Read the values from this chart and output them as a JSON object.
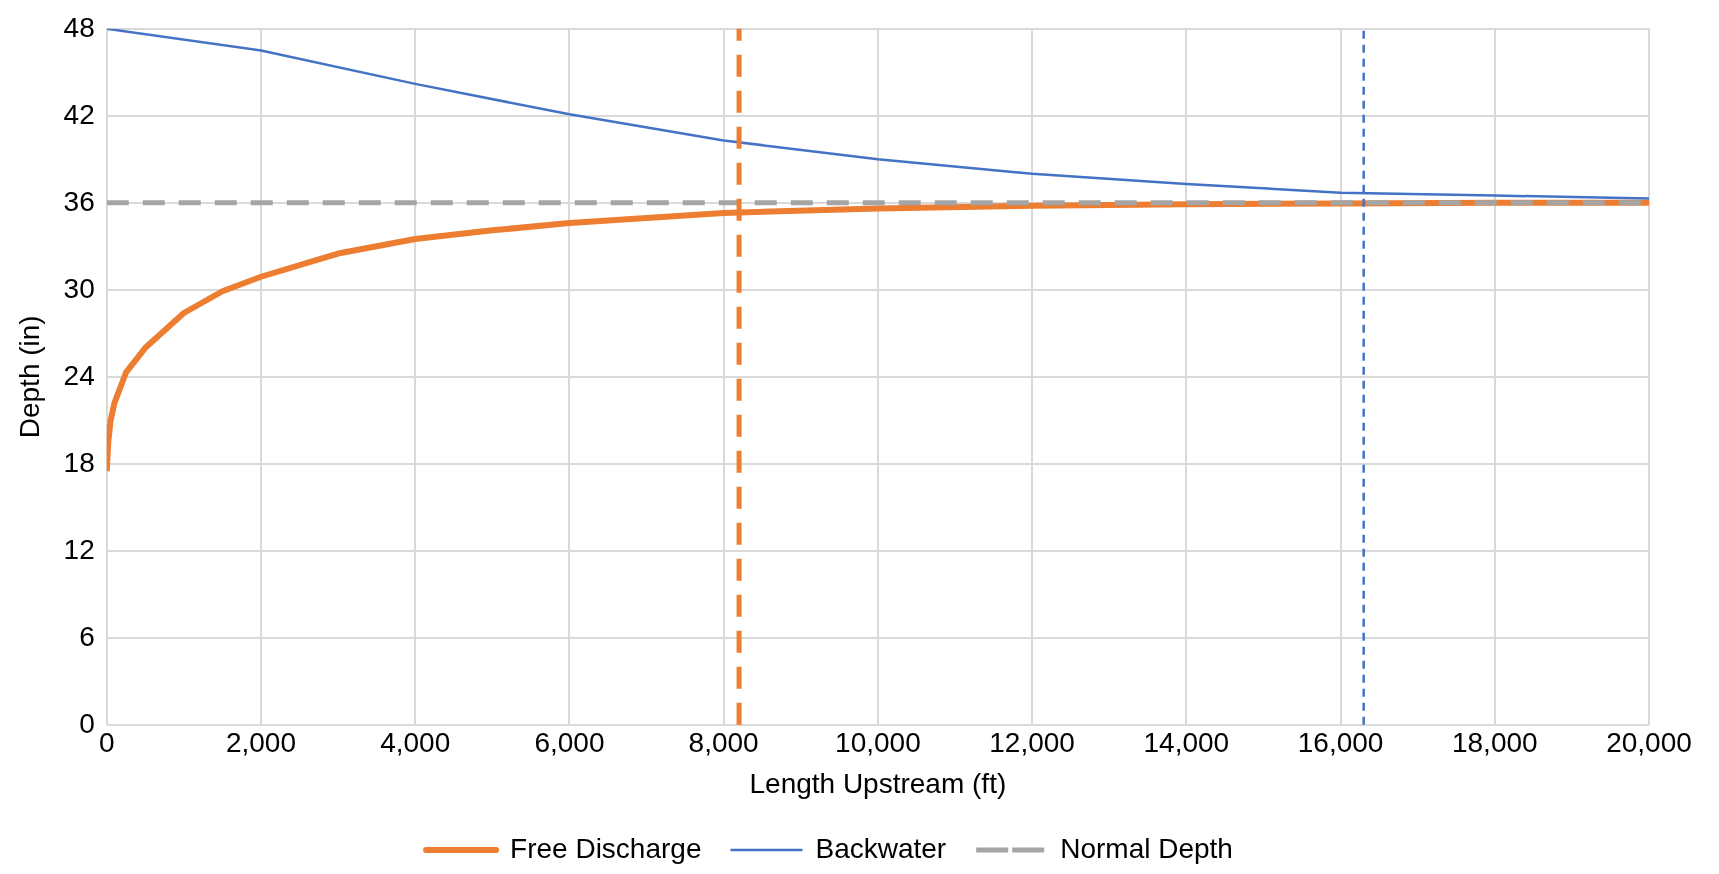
{
  "chart_data": {
    "type": "line",
    "xlabel": "Length Upstream (ft)",
    "ylabel": "Depth (in)",
    "xlim": [
      0,
      20000
    ],
    "xticks": [
      0,
      {
        "value": 2000,
        "label": "2,000"
      },
      {
        "value": 4000,
        "label": "4,000"
      },
      {
        "value": 6000,
        "label": "6,000"
      },
      {
        "value": 8000,
        "label": "8,000"
      },
      {
        "value": 10000,
        "label": "10,000"
      },
      {
        "value": 12000,
        "label": "12,000"
      },
      {
        "value": 14000,
        "label": "14,000"
      },
      {
        "value": 16000,
        "label": "16,000"
      },
      {
        "value": 18000,
        "label": "18,000"
      },
      {
        "value": 20000,
        "label": "20,000"
      }
    ],
    "ylim": [
      0,
      48
    ],
    "yticks": [
      0,
      6,
      12,
      18,
      24,
      30,
      36,
      42,
      48
    ],
    "grid": true,
    "legend": "bottom",
    "marker": "none",
    "series": [
      {
        "name": "Free Discharge",
        "color": "#ed7d31",
        "line_style": "solid",
        "x": [
          0,
          20,
          50,
          100,
          250,
          500,
          1000,
          1500,
          2000,
          3000,
          4000,
          5000,
          6000,
          8000,
          10000,
          12000,
          14000,
          16000,
          18000,
          20000
        ],
        "values": [
          17.5,
          19.5,
          21,
          22.2,
          24.3,
          26,
          28.4,
          29.9,
          30.9,
          32.5,
          33.5,
          34.1,
          34.6,
          35.3,
          35.6,
          35.8,
          35.9,
          35.95,
          36,
          36
        ]
      },
      {
        "name": "Backwater",
        "color": "#4472c4",
        "line_style": "solid",
        "x": [
          0,
          2000,
          4000,
          6000,
          8000,
          10000,
          12000,
          14000,
          16000,
          18000,
          20000
        ],
        "values": [
          48,
          46.5,
          44.2,
          42.1,
          40.3,
          39,
          38,
          37.3,
          36.7,
          36.5,
          36.3
        ]
      },
      {
        "name": "Normal Depth",
        "color": "#a5a5a5",
        "line_style": "dashed",
        "x": [
          0,
          20000
        ],
        "values": [
          36,
          36
        ]
      }
    ],
    "ref_lines": [
      {
        "axis": "x",
        "value": 8200,
        "color": "#ed7d31",
        "line_style": "dashed"
      },
      {
        "axis": "x",
        "value": 16300,
        "color": "#4472c4",
        "line_style": "dotted"
      }
    ]
  }
}
